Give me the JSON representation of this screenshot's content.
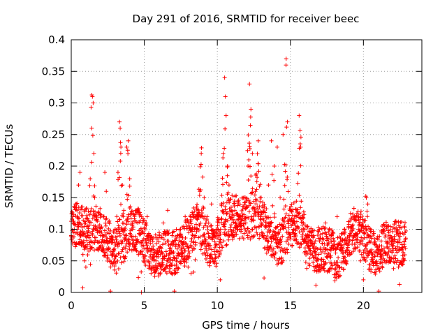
{
  "chart_data": {
    "type": "scatter",
    "title": "Day 291 of 2016, SRMTID for receiver beec",
    "xlabel": "GPS time / hours",
    "ylabel": "SRMTID / TECUs",
    "xlim": [
      0,
      24
    ],
    "ylim": [
      0,
      0.4
    ],
    "x_ticks": [
      0,
      5,
      10,
      15,
      20
    ],
    "x_tick_labels": [
      "0",
      "5",
      "10",
      "15",
      "20"
    ],
    "y_ticks": [
      0,
      0.05,
      0.1,
      0.15,
      0.2,
      0.25,
      0.3,
      0.35,
      0.4
    ],
    "y_tick_labels": [
      "0",
      "0.05",
      "0.1",
      "0.15",
      "0.2",
      "0.25",
      "0.3",
      "0.35",
      "0.4"
    ],
    "grid": true,
    "marker": "+",
    "color": "#ff0000",
    "x_range_of_data": [
      0,
      22.9
    ],
    "series": [
      {
        "name": "SRMTID",
        "points": [
          [
            0.0,
            0.09
          ],
          [
            0.1,
            0.12
          ],
          [
            0.2,
            0.11
          ],
          [
            0.3,
            0.14
          ],
          [
            0.4,
            0.1
          ],
          [
            0.5,
            0.17
          ],
          [
            0.6,
            0.19
          ],
          [
            0.7,
            0.08
          ],
          [
            0.8,
            0.06
          ],
          [
            0.9,
            0.05
          ],
          [
            1.0,
            0.04
          ],
          [
            1.1,
            0.07
          ],
          [
            1.2,
            0.09
          ],
          [
            1.3,
            0.18
          ],
          [
            1.4,
            0.26
          ],
          [
            1.45,
            0.31
          ],
          [
            1.5,
            0.3
          ],
          [
            1.55,
            0.22
          ],
          [
            1.6,
            0.15
          ],
          [
            1.7,
            0.12
          ],
          [
            1.8,
            0.08
          ],
          [
            1.9,
            0.07
          ],
          [
            2.0,
            0.09
          ],
          [
            2.2,
            0.12
          ],
          [
            2.3,
            0.19
          ],
          [
            2.4,
            0.16
          ],
          [
            2.6,
            0.08
          ],
          [
            2.8,
            0.06
          ],
          [
            3.0,
            0.1
          ],
          [
            3.2,
            0.19
          ],
          [
            3.3,
            0.27
          ],
          [
            3.35,
            0.26
          ],
          [
            3.4,
            0.23
          ],
          [
            3.5,
            0.17
          ],
          [
            3.6,
            0.13
          ],
          [
            3.8,
            0.23
          ],
          [
            3.9,
            0.24
          ],
          [
            4.0,
            0.18
          ],
          [
            4.2,
            0.1
          ],
          [
            4.4,
            0.07
          ],
          [
            4.6,
            0.06
          ],
          [
            4.8,
            0.0
          ],
          [
            5.0,
            0.05
          ],
          [
            5.2,
            0.12
          ],
          [
            5.4,
            0.09
          ],
          [
            5.6,
            0.06
          ],
          [
            5.8,
            0.05
          ],
          [
            6.0,
            0.08
          ],
          [
            6.3,
            0.11
          ],
          [
            6.6,
            0.13
          ],
          [
            6.9,
            0.09
          ],
          [
            7.2,
            0.1
          ],
          [
            7.5,
            0.08
          ],
          [
            7.8,
            0.12
          ],
          [
            8.0,
            0.04
          ],
          [
            8.2,
            0.03
          ],
          [
            8.4,
            0.07
          ],
          [
            8.6,
            0.1
          ],
          [
            8.8,
            0.16
          ],
          [
            8.9,
            0.22
          ],
          [
            9.1,
            0.15
          ],
          [
            9.3,
            0.12
          ],
          [
            9.6,
            0.14
          ],
          [
            9.8,
            0.09
          ],
          [
            10.0,
            0.1
          ],
          [
            10.2,
            0.02
          ],
          [
            10.3,
            0.14
          ],
          [
            10.4,
            0.22
          ],
          [
            10.5,
            0.34
          ],
          [
            10.55,
            0.31
          ],
          [
            10.6,
            0.28
          ],
          [
            10.7,
            0.2
          ],
          [
            10.8,
            0.17
          ],
          [
            11.0,
            0.09
          ],
          [
            11.2,
            0.13
          ],
          [
            11.4,
            0.1
          ],
          [
            11.6,
            0.12
          ],
          [
            11.9,
            0.15
          ],
          [
            12.1,
            0.2
          ],
          [
            12.2,
            0.33
          ],
          [
            12.3,
            0.29
          ],
          [
            12.4,
            0.22
          ],
          [
            12.6,
            0.16
          ],
          [
            12.8,
            0.24
          ],
          [
            13.0,
            0.15
          ],
          [
            13.2,
            0.09
          ],
          [
            13.5,
            0.17
          ],
          [
            13.7,
            0.24
          ],
          [
            13.9,
            0.2
          ],
          [
            14.1,
            0.23
          ],
          [
            14.3,
            0.15
          ],
          [
            14.5,
            0.25
          ],
          [
            14.7,
            0.36
          ],
          [
            14.8,
            0.27
          ],
          [
            15.0,
            0.13
          ],
          [
            15.2,
            0.1
          ],
          [
            15.4,
            0.12
          ],
          [
            15.6,
            0.28
          ],
          [
            15.7,
            0.23
          ],
          [
            15.9,
            0.11
          ],
          [
            16.2,
            0.08
          ],
          [
            16.6,
            0.09
          ],
          [
            17.0,
            0.1
          ],
          [
            17.4,
            0.11
          ],
          [
            17.8,
            0.08
          ],
          [
            18.2,
            0.12
          ],
          [
            18.6,
            0.07
          ],
          [
            19.0,
            0.06
          ],
          [
            19.4,
            0.09
          ],
          [
            19.8,
            0.05
          ],
          [
            20.0,
            0.02
          ],
          [
            20.2,
            0.15
          ],
          [
            20.3,
            0.14
          ],
          [
            20.5,
            0.1
          ],
          [
            20.8,
            0.08
          ],
          [
            21.2,
            0.06
          ],
          [
            21.6,
            0.05
          ],
          [
            22.0,
            0.07
          ],
          [
            22.4,
            0.04
          ],
          [
            22.8,
            0.08
          ]
        ]
      }
    ]
  }
}
